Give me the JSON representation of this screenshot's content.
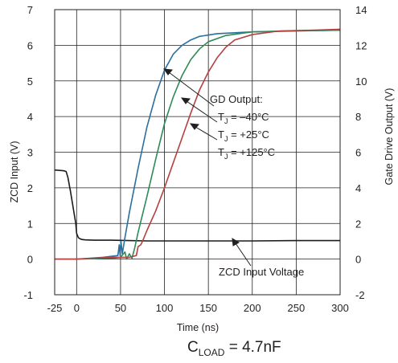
{
  "chart_data": {
    "type": "line",
    "xlabel": "Time (ns)",
    "ylabel_left": "ZCD Input (V)",
    "ylabel_right": "Gate Drive Output (V)",
    "xlim": [
      -25,
      300
    ],
    "ylim_left": [
      -1,
      7
    ],
    "ylim_right": [
      -2,
      14
    ],
    "x_ticks": [
      "-25",
      "0",
      "50",
      "100",
      "150",
      "200",
      "250",
      "300"
    ],
    "y_left_ticks": [
      "-1",
      "0",
      "1",
      "2",
      "3",
      "4",
      "5",
      "6",
      "7"
    ],
    "y_right_ticks": [
      "-2",
      "0",
      "2",
      "4",
      "6",
      "8",
      "10",
      "12",
      "14"
    ],
    "grid": true,
    "annotations": {
      "gd_title": "GD Output:",
      "gd_lines": [
        {
          "t": "T",
          "sub": "J",
          "rest": " = –40°C"
        },
        {
          "t": "T",
          "sub": "J",
          "rest": " = +25°C"
        },
        {
          "t": "T",
          "sub": "J",
          "rest": " = +125°C"
        }
      ],
      "zcd_label": "ZCD Input Voltage"
    },
    "footnote": {
      "main": "C",
      "sub": "LOAD",
      "rest": " = 4.7nF"
    },
    "series": [
      {
        "axis": "left",
        "color": "#1b1b1b",
        "points": [
          [
            -25,
            2.5
          ],
          [
            -15,
            2.48
          ],
          [
            -12,
            2.46
          ],
          [
            -10,
            2.3
          ],
          [
            -7,
            1.9
          ],
          [
            -4,
            1.45
          ],
          [
            -1,
            1.0
          ],
          [
            0,
            0.72
          ],
          [
            2,
            0.6
          ],
          [
            4,
            0.57
          ],
          [
            6,
            0.55
          ],
          [
            10,
            0.54
          ],
          [
            20,
            0.53
          ],
          [
            40,
            0.53
          ],
          [
            60,
            0.52
          ],
          [
            80,
            0.51
          ],
          [
            100,
            0.51
          ],
          [
            150,
            0.51
          ],
          [
            200,
            0.51
          ],
          [
            250,
            0.52
          ],
          [
            300,
            0.52
          ]
        ]
      },
      {
        "axis": "right",
        "color": "#2a6f9e",
        "points": [
          [
            -25,
            0.0
          ],
          [
            0,
            0.0
          ],
          [
            30,
            0.1
          ],
          [
            47,
            0.2
          ],
          [
            48.5,
            0.8
          ],
          [
            49.5,
            0.2
          ],
          [
            50.5,
            1.0
          ],
          [
            52,
            0.3
          ],
          [
            55,
            1.2
          ],
          [
            60,
            2.6
          ],
          [
            70,
            5.1
          ],
          [
            80,
            7.4
          ],
          [
            90,
            9.2
          ],
          [
            100,
            10.6
          ],
          [
            110,
            11.5
          ],
          [
            120,
            12.0
          ],
          [
            130,
            12.3
          ],
          [
            140,
            12.5
          ],
          [
            160,
            12.65
          ],
          [
            200,
            12.75
          ],
          [
            250,
            12.8
          ],
          [
            300,
            12.85
          ]
        ]
      },
      {
        "axis": "right",
        "color": "#2e8b57",
        "points": [
          [
            -25,
            0.0
          ],
          [
            0,
            0.0
          ],
          [
            40,
            0.05
          ],
          [
            50,
            0.1
          ],
          [
            55,
            0.4
          ],
          [
            57,
            0.0
          ],
          [
            60,
            0.3
          ],
          [
            63,
            0.05
          ],
          [
            66,
            0.6
          ],
          [
            70,
            1.5
          ],
          [
            80,
            3.5
          ],
          [
            90,
            5.6
          ],
          [
            100,
            7.6
          ],
          [
            110,
            9.1
          ],
          [
            120,
            10.3
          ],
          [
            130,
            11.2
          ],
          [
            140,
            11.8
          ],
          [
            150,
            12.2
          ],
          [
            170,
            12.55
          ],
          [
            200,
            12.75
          ],
          [
            250,
            12.82
          ],
          [
            300,
            12.85
          ]
        ]
      },
      {
        "axis": "right",
        "color": "#b5413e",
        "points": [
          [
            -25,
            0.0
          ],
          [
            0,
            0.0
          ],
          [
            40,
            0.1
          ],
          [
            60,
            0.1
          ],
          [
            68,
            0.2
          ],
          [
            70,
            0.7
          ],
          [
            73,
            0.8
          ],
          [
            75,
            1.0
          ],
          [
            80,
            1.6
          ],
          [
            90,
            2.7
          ],
          [
            100,
            4.0
          ],
          [
            110,
            5.4
          ],
          [
            120,
            6.8
          ],
          [
            130,
            8.2
          ],
          [
            140,
            9.5
          ],
          [
            150,
            10.5
          ],
          [
            160,
            11.3
          ],
          [
            170,
            11.9
          ],
          [
            180,
            12.3
          ],
          [
            200,
            12.6
          ],
          [
            230,
            12.8
          ],
          [
            270,
            12.85
          ],
          [
            300,
            12.9
          ]
        ]
      }
    ]
  }
}
